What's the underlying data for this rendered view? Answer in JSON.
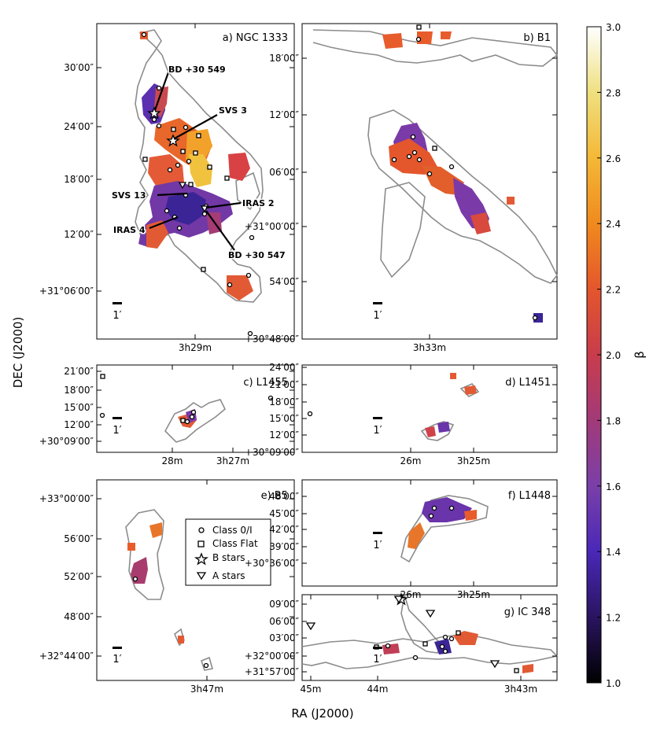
{
  "chart_data": {
    "type": "heatmap",
    "colorbar": {
      "label": "β",
      "min": 1.0,
      "max": 3.0,
      "ticks": [
        "1.0",
        "1.2",
        "1.4",
        "1.6",
        "1.8",
        "2.0",
        "2.2",
        "2.4",
        "2.6",
        "2.8",
        "3.0"
      ],
      "stops": [
        "#000000",
        "#2a1460",
        "#4a28b8",
        "#7a3fa8",
        "#a23a78",
        "#c83c4c",
        "#e4562c",
        "#f08a1e",
        "#f4b836",
        "#efe080",
        "#ffffff"
      ]
    },
    "xlabel": "RA (J2000)",
    "ylabel": "DEC (J2000)",
    "scale_bar_label": "1′",
    "legend": {
      "entries": [
        {
          "marker": "circle",
          "label": "Class 0/I"
        },
        {
          "marker": "square",
          "label": "Class Flat"
        },
        {
          "marker": "star",
          "label": "B stars"
        },
        {
          "marker": "triangle",
          "label": "A stars"
        }
      ]
    },
    "panels": [
      {
        "id": "a",
        "title": "a) NGC 1333",
        "yticks": [
          "30′00″",
          "24′00″",
          "18′00″",
          "12′00″",
          "+31°06′00″"
        ],
        "xticks": [
          "3h29m"
        ],
        "annotations": [
          "BD +30 549",
          "SVS 3",
          "SVS 13",
          "IRAS 2",
          "IRAS 4",
          "BD +30 547"
        ]
      },
      {
        "id": "b",
        "title": "b) B1",
        "yticks": [
          "18′00″",
          "12′00″",
          "06′00″",
          "+31°00′00″",
          "54′00″",
          "+30°48′00″"
        ],
        "xticks": [
          "3h33m"
        ]
      },
      {
        "id": "c",
        "title": "c) L1455",
        "yticks": [
          "21′00″",
          "18′00″",
          "15′00″",
          "12′00″",
          "+30°09′00″"
        ],
        "xticks": [
          "28m",
          "3h27m"
        ]
      },
      {
        "id": "d",
        "title": "d) L1451",
        "yticks": [
          "24′00″",
          "21′00″",
          "18′00″",
          "15′00″",
          "12′00″",
          "+30°09′00″"
        ],
        "xticks": [
          "26m",
          "3h25m"
        ]
      },
      {
        "id": "e",
        "title": "e) B5",
        "yticks": [
          "+33°00′00″",
          "56′00″",
          "52′00″",
          "48′00″",
          "+32°44′00″"
        ],
        "xticks": [
          "3h47m"
        ]
      },
      {
        "id": "f",
        "title": "f) L1448",
        "yticks": [
          "48′00″",
          "45′00″",
          "42′00″",
          "39′00″",
          "+30°36′00″"
        ],
        "xticks": [
          "26m",
          "3h25m"
        ]
      },
      {
        "id": "g",
        "title": "g) IC 348",
        "yticks": [
          "09′00″",
          "06′00″",
          "03′00″",
          "+32°00′00″",
          "+31°57′00″"
        ],
        "xticks": [
          "45m",
          "44m",
          "3h43m"
        ]
      }
    ]
  }
}
